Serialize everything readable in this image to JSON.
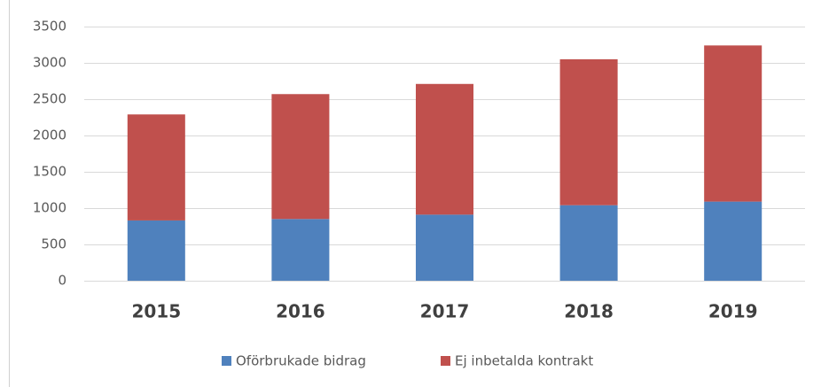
{
  "chart_data": {
    "type": "stacked_bar",
    "categories": [
      "2015",
      "2016",
      "2017",
      "2018",
      "2019"
    ],
    "series": [
      {
        "name": "Oförbrukade bidrag",
        "color": "#4f81bd",
        "values": [
          830,
          850,
          910,
          1040,
          1090
        ]
      },
      {
        "name": "Ej inbetalda kontrakt",
        "color": "#c0504d",
        "values": [
          1460,
          1720,
          1800,
          2010,
          2150
        ]
      }
    ],
    "ylim": [
      0,
      3500
    ],
    "yticks": [
      0,
      500,
      1000,
      1500,
      2000,
      2500,
      3000,
      3500
    ],
    "grid": true,
    "legend": "bottom"
  }
}
